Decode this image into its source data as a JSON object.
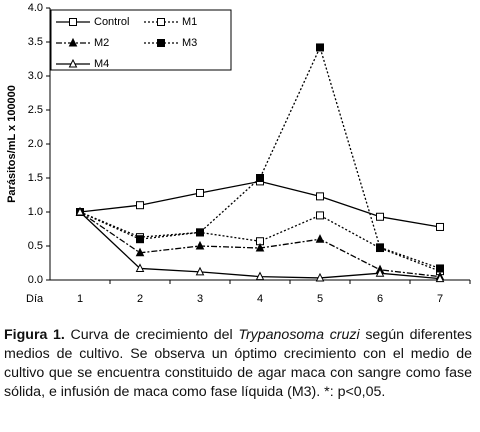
{
  "chart_data": {
    "type": "line",
    "y_label": "Parásitos/mL x 100000",
    "x_label": "Día",
    "categories": [
      "1",
      "2",
      "3",
      "4",
      "5",
      "6",
      "7"
    ],
    "ylim": [
      0,
      4
    ],
    "yticks": [
      {
        "value": 0,
        "label": "0.0"
      },
      0.5,
      {
        "value": 1,
        "label": "1.0"
      },
      1.5,
      {
        "value": 2,
        "label": "2.0"
      },
      2.5,
      {
        "value": 3,
        "label": "3.0"
      },
      3.5,
      {
        "value": 4,
        "label": "4.0"
      }
    ],
    "grid": false,
    "series": [
      {
        "name": "Control",
        "color": "#000000",
        "dash": "solid",
        "marker": "open-square",
        "values": [
          1.0,
          1.1,
          1.28,
          1.45,
          1.23,
          0.93,
          0.78
        ]
      },
      {
        "name": "M1",
        "color": "#000000",
        "dash": "dotted",
        "marker": "open-square",
        "values": [
          1.0,
          0.63,
          0.7,
          0.57,
          0.95,
          0.47,
          0.13
        ]
      },
      {
        "name": "M2",
        "color": "#000000",
        "dash": "dashdot",
        "marker": "filled-triangle",
        "values": [
          1.0,
          0.4,
          0.5,
          0.47,
          0.6,
          0.15,
          0.05
        ]
      },
      {
        "name": "M3",
        "color": "#000000",
        "dash": "dotted",
        "marker": "filled-square",
        "values": [
          1.0,
          0.6,
          0.7,
          1.5,
          3.42,
          0.48,
          0.17
        ]
      },
      {
        "name": "M4",
        "color": "#000000",
        "dash": "solid",
        "marker": "open-triangle",
        "values": [
          1.0,
          0.17,
          0.12,
          0.05,
          0.03,
          0.1,
          0.02
        ]
      }
    ]
  },
  "caption": {
    "label": "Figura 1.",
    "text_before": " Curva de crecimiento del ",
    "species": "Trypanosoma cruzi",
    "text_after": " según diferentes medios de cultivo. Se observa un óptimo crecimiento con el medio de cultivo que se encuentra constituido de agar maca con sangre como fase sólida, e infusión de maca como fase líquida (M3). *: p<0,05."
  }
}
